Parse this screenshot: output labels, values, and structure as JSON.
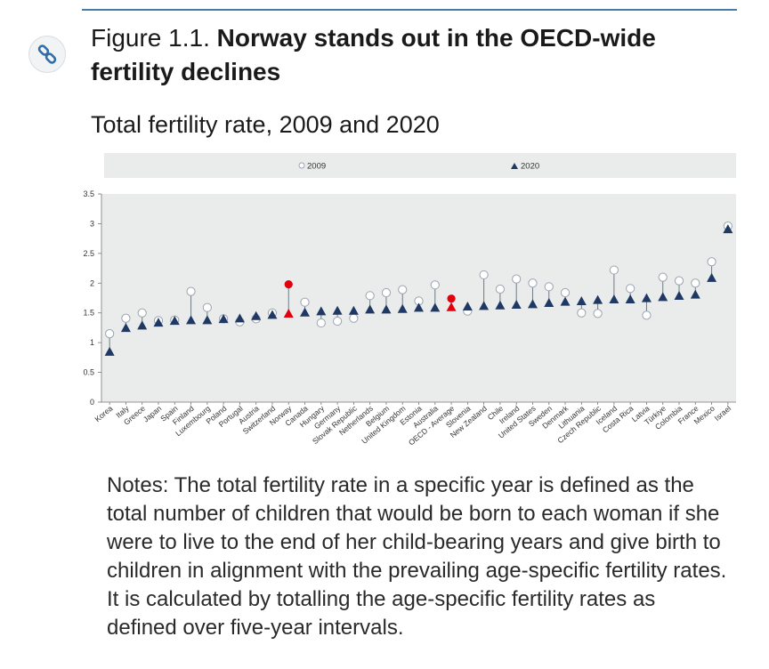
{
  "figure": {
    "label": "Figure 1.1.",
    "headline": "Norway stands out in the OECD-wide fertility declines",
    "subtitle": "Total fertility rate, 2009 and 2020",
    "link_icon": "link-icon"
  },
  "notes": "Notes: The total fertility rate in a specific year is defined as the total number of children that would be born to each woman if she were to live to the end of her child-bearing years and give birth to children in alignment with the prevailing age-specific fertility rates. It is calculated by totalling the age-specific fertility rates as defined over five-year intervals.",
  "chart_data": {
    "type": "scatter",
    "title": "Total fertility rate, 2009 and 2020",
    "ylim": [
      0,
      3.5
    ],
    "yticks": [
      "0",
      "0.5",
      "1",
      "1.5",
      "2",
      "2.5",
      "3",
      "3.5"
    ],
    "grid": false,
    "legend_position": "top",
    "categories": [
      "Korea",
      "Italy",
      "Greece",
      "Japan",
      "Spain",
      "Finland",
      "Luxembourg",
      "Poland",
      "Portugal",
      "Austria",
      "Switzerland",
      "Norway",
      "Canada",
      "Hungary",
      "Germany",
      "Slovak Republic",
      "Netherlands",
      "Belgium",
      "United Kingdom",
      "Estonia",
      "Australia",
      "OECD - Average",
      "Slovenia",
      "New Zealand",
      "Chile",
      "Ireland",
      "United States",
      "Sweden",
      "Denmark",
      "Lithuania",
      "Czech Republic",
      "Iceland",
      "Costa Rica",
      "Latvia",
      "Türkiye",
      "Colombia",
      "France",
      "Mexico",
      "Israel"
    ],
    "highlight": [
      "Norway",
      "OECD - Average"
    ],
    "series": [
      {
        "name": "2009",
        "marker": "circle",
        "values": [
          1.15,
          1.41,
          1.5,
          1.37,
          1.38,
          1.86,
          1.59,
          1.4,
          1.35,
          1.4,
          1.5,
          1.98,
          1.68,
          1.33,
          1.36,
          1.41,
          1.79,
          1.84,
          1.89,
          1.7,
          1.97,
          1.74,
          1.53,
          2.14,
          1.9,
          2.07,
          2.0,
          1.94,
          1.84,
          1.5,
          1.49,
          2.22,
          1.91,
          1.46,
          2.1,
          2.04,
          2.0,
          2.36,
          2.96
        ]
      },
      {
        "name": "2020",
        "marker": "triangle",
        "values": [
          0.84,
          1.24,
          1.28,
          1.33,
          1.36,
          1.37,
          1.37,
          1.39,
          1.4,
          1.44,
          1.46,
          1.48,
          1.5,
          1.52,
          1.53,
          1.53,
          1.55,
          1.55,
          1.56,
          1.58,
          1.58,
          1.59,
          1.6,
          1.61,
          1.62,
          1.63,
          1.64,
          1.66,
          1.68,
          1.69,
          1.71,
          1.72,
          1.72,
          1.74,
          1.76,
          1.78,
          1.8,
          2.08,
          2.9
        ]
      }
    ],
    "colors": {
      "default": "#1f3864",
      "highlight": "#e3000f",
      "circle_stroke": "#9aa4b1",
      "plot_bg": "#e9ecea",
      "stem": "#6f7b86"
    }
  }
}
